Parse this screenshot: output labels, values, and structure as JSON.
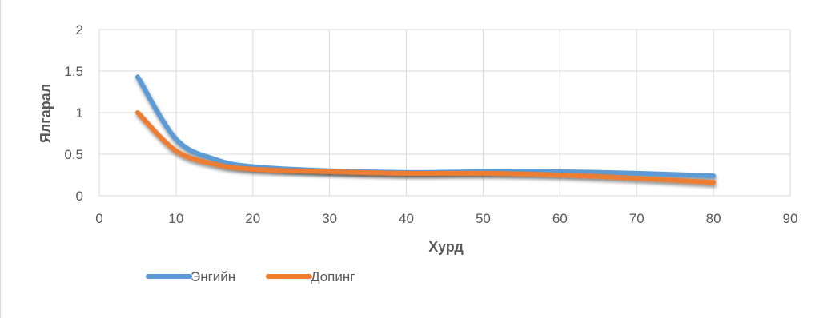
{
  "chart_data": {
    "type": "line",
    "title": "",
    "xlabel": "Хурд",
    "ylabel": "Ялгарал",
    "xlim": [
      0,
      90
    ],
    "ylim": [
      0,
      2
    ],
    "x_ticks": [
      0,
      10,
      20,
      30,
      40,
      50,
      60,
      70,
      80,
      90
    ],
    "y_ticks": [
      0,
      0.5,
      1,
      1.5,
      2
    ],
    "grid": true,
    "legend_position": "bottom-left",
    "series": [
      {
        "name": "Энгийн",
        "color": "#5b9bd5",
        "points": [
          [
            5,
            1.43
          ],
          [
            10,
            0.68
          ],
          [
            15,
            0.44
          ],
          [
            20,
            0.35
          ],
          [
            30,
            0.3
          ],
          [
            40,
            0.28
          ],
          [
            50,
            0.29
          ],
          [
            60,
            0.29
          ],
          [
            70,
            0.27
          ],
          [
            80,
            0.24
          ]
        ]
      },
      {
        "name": "Допинг",
        "color": "#ed7d31",
        "points": [
          [
            5,
            1.0
          ],
          [
            10,
            0.54
          ],
          [
            15,
            0.38
          ],
          [
            20,
            0.32
          ],
          [
            30,
            0.29
          ],
          [
            40,
            0.27
          ],
          [
            50,
            0.27
          ],
          [
            60,
            0.25
          ],
          [
            70,
            0.21
          ],
          [
            80,
            0.16
          ]
        ]
      }
    ]
  }
}
